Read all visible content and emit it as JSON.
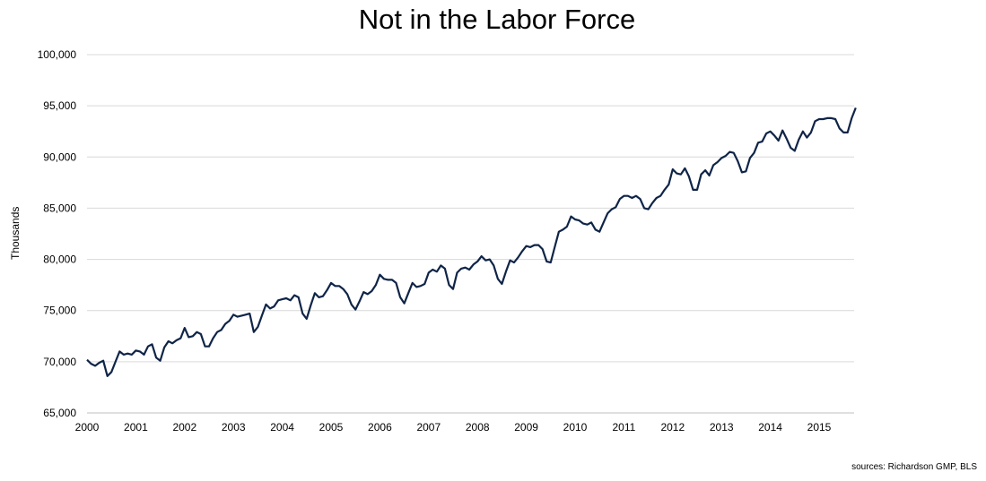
{
  "chart_data": {
    "type": "line",
    "title": "Not in the Labor Force",
    "xlabel": "",
    "ylabel": "Thousands",
    "ylim": [
      65000,
      100000
    ],
    "yticks": [
      "65,000",
      "70,000",
      "75,000",
      "80,000",
      "85,000",
      "90,000",
      "95,000",
      "100,000"
    ],
    "ytick_values": [
      65000,
      70000,
      75000,
      80000,
      85000,
      90000,
      95000,
      100000
    ],
    "xticks": [
      "2000",
      "2001",
      "2002",
      "2003",
      "2004",
      "2005",
      "2006",
      "2007",
      "2008",
      "2009",
      "2010",
      "2011",
      "2012",
      "2013",
      "2014",
      "2015"
    ],
    "start": "2000-01",
    "frequency": "monthly",
    "grid": true,
    "line_color": "#0f2447",
    "values": [
      70200,
      69800,
      69600,
      69900,
      70100,
      68600,
      69000,
      70000,
      71000,
      70700,
      70800,
      70700,
      71100,
      71000,
      70700,
      71500,
      71700,
      70400,
      70100,
      71400,
      72000,
      71800,
      72100,
      72300,
      73300,
      72400,
      72500,
      72900,
      72700,
      71500,
      71500,
      72300,
      72900,
      73100,
      73700,
      74000,
      74600,
      74400,
      74500,
      74600,
      74700,
      72900,
      73400,
      74500,
      75600,
      75200,
      75400,
      76000,
      76100,
      76200,
      76000,
      76500,
      76300,
      74700,
      74200,
      75500,
      76700,
      76300,
      76400,
      77000,
      77700,
      77400,
      77400,
      77100,
      76600,
      75600,
      75100,
      75900,
      76800,
      76600,
      76900,
      77500,
      78500,
      78100,
      78000,
      78000,
      77700,
      76300,
      75700,
      76700,
      77700,
      77300,
      77400,
      77600,
      78700,
      79000,
      78800,
      79400,
      79100,
      77500,
      77100,
      78700,
      79100,
      79200,
      79000,
      79500,
      79800,
      80300,
      79900,
      80000,
      79400,
      78100,
      77600,
      78800,
      79900,
      79700,
      80200,
      80800,
      81300,
      81200,
      81400,
      81400,
      81000,
      79800,
      79700,
      81200,
      82700,
      82900,
      83200,
      84200,
      83900,
      83800,
      83500,
      83400,
      83600,
      82900,
      82700,
      83600,
      84500,
      84900,
      85100,
      85900,
      86200,
      86200,
      86000,
      86200,
      85900,
      85000,
      84900,
      85500,
      86000,
      86200,
      86800,
      87300,
      88800,
      88400,
      88300,
      88900,
      88100,
      86800,
      86800,
      88300,
      88700,
      88200,
      89200,
      89500,
      89900,
      90100,
      90500,
      90400,
      89600,
      88500,
      88600,
      89900,
      90400,
      91400,
      91500,
      92300,
      92500,
      92100,
      91600,
      92600,
      91800,
      90900,
      90600,
      91700,
      92500,
      91900,
      92400,
      93500,
      93700,
      93700,
      93800,
      93800,
      93700,
      92800,
      92400,
      92400,
      93800,
      94800
    ]
  },
  "source_text": "sources: Richardson GMP, BLS"
}
